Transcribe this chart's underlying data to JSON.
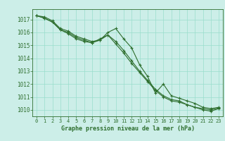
{
  "title": "Graphe pression niveau de la mer (hPa)",
  "bg_color": "#cceee8",
  "grid_color": "#99ddcc",
  "line_color": "#2d6e2d",
  "xlim": [
    -0.5,
    23.5
  ],
  "ylim": [
    1009.5,
    1017.8
  ],
  "yticks": [
    1010,
    1011,
    1012,
    1013,
    1014,
    1015,
    1016,
    1017
  ],
  "xticks": [
    0,
    1,
    2,
    3,
    4,
    5,
    6,
    7,
    8,
    9,
    10,
    11,
    12,
    13,
    14,
    15,
    16,
    17,
    18,
    19,
    20,
    21,
    22,
    23
  ],
  "series": [
    [
      1017.3,
      1017.2,
      1016.9,
      1016.3,
      1016.1,
      1015.7,
      1015.5,
      1015.3,
      1015.4,
      1016.0,
      1016.3,
      1015.5,
      1014.8,
      1013.5,
      1012.6,
      1011.3,
      1012.0,
      1011.1,
      1010.9,
      1010.7,
      1010.5,
      1010.2,
      1010.1,
      1010.2
    ],
    [
      1017.3,
      1017.1,
      1016.8,
      1016.2,
      1016.0,
      1015.6,
      1015.4,
      1015.2,
      1015.4,
      1015.8,
      1015.3,
      1014.6,
      1013.8,
      1013.0,
      1012.3,
      1011.6,
      1011.1,
      1010.8,
      1010.7,
      1010.4,
      1010.2,
      1010.1,
      1010.0,
      1010.15
    ],
    [
      1017.3,
      1017.1,
      1016.8,
      1016.2,
      1015.9,
      1015.5,
      1015.3,
      1015.2,
      1015.5,
      1015.8,
      1015.1,
      1014.4,
      1013.6,
      1012.9,
      1012.2,
      1011.5,
      1011.0,
      1010.7,
      1010.6,
      1010.4,
      1010.2,
      1010.0,
      1009.9,
      1010.1
    ]
  ]
}
